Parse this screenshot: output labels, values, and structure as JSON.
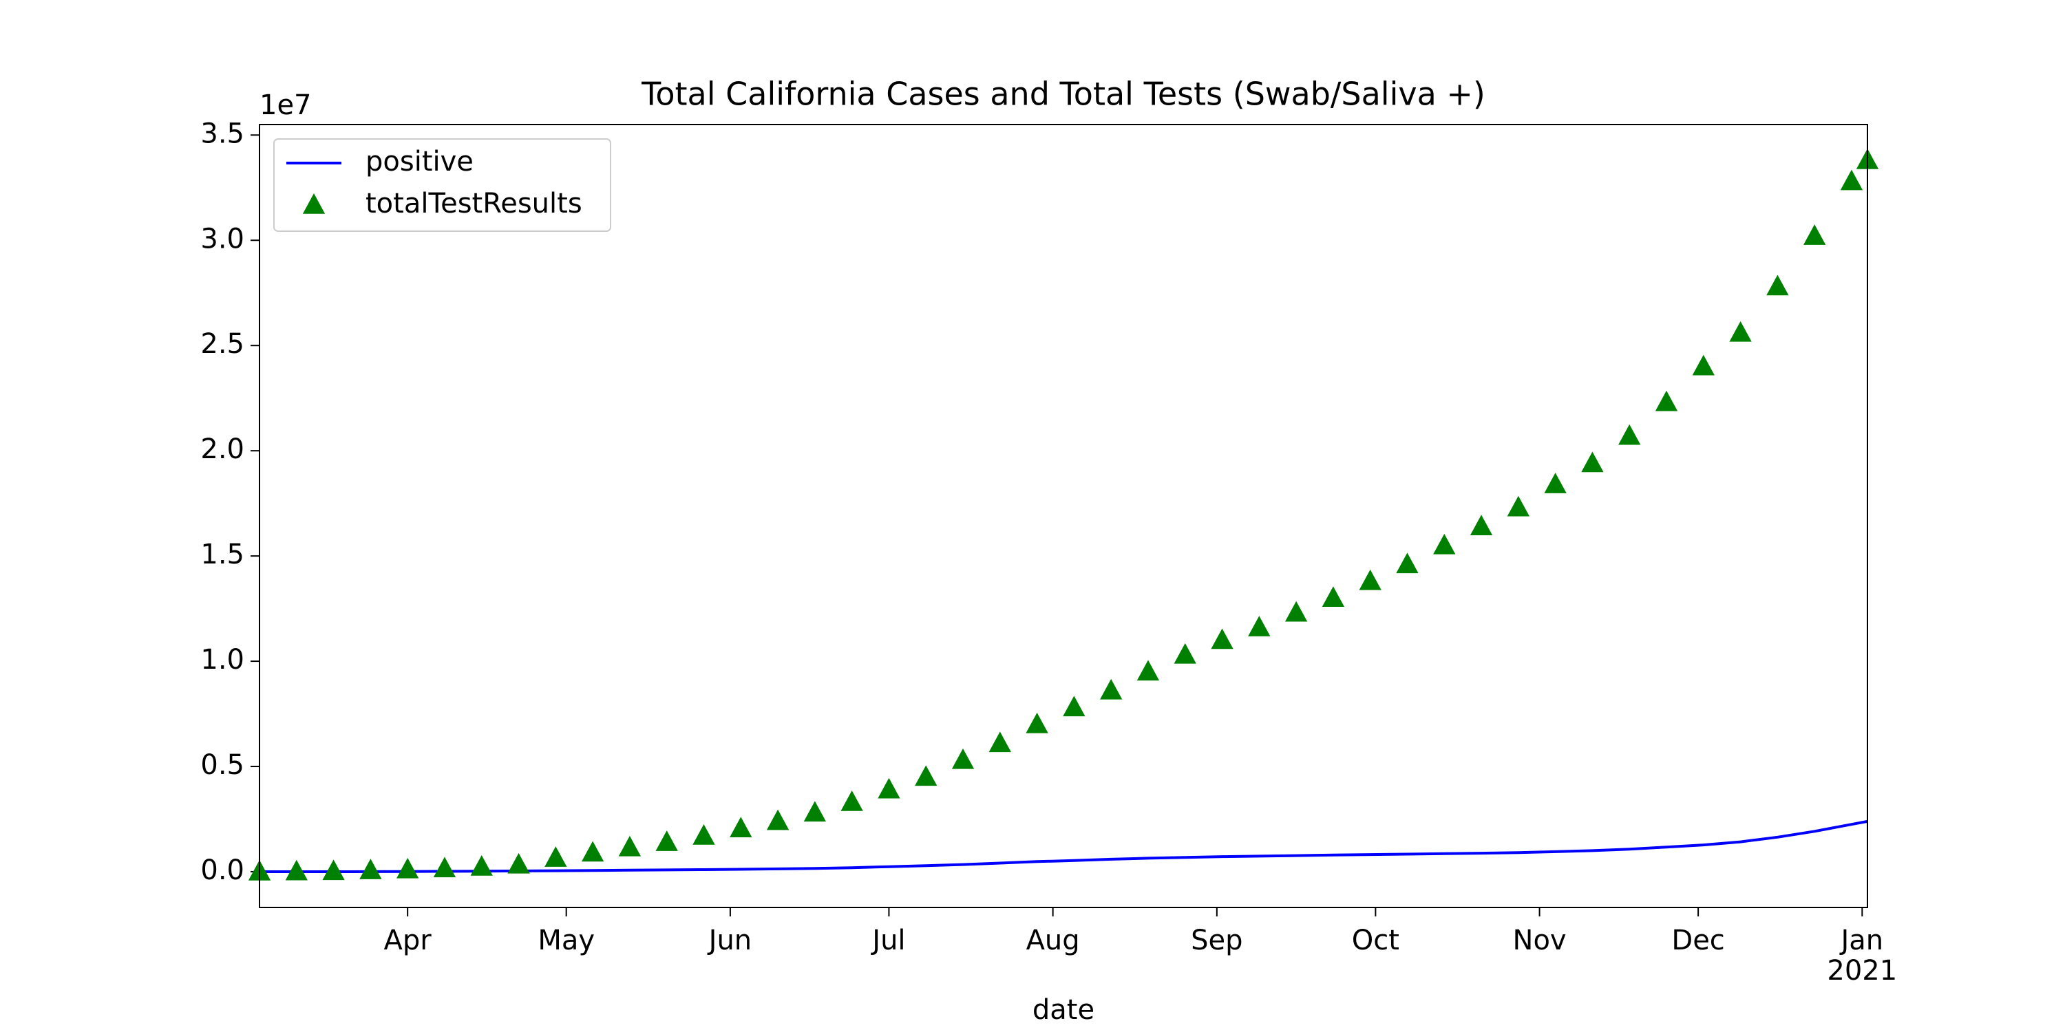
{
  "chart_data": {
    "type": "line",
    "title": "Total California Cases and Total Tests (Swab/Saliva +)",
    "xlabel": "date",
    "y_offset_label": "1e7",
    "x": [
      "2020-03-04",
      "2020-03-11",
      "2020-03-18",
      "2020-03-25",
      "2020-04-01",
      "2020-04-08",
      "2020-04-15",
      "2020-04-22",
      "2020-04-29",
      "2020-05-06",
      "2020-05-13",
      "2020-05-20",
      "2020-05-27",
      "2020-06-03",
      "2020-06-10",
      "2020-06-17",
      "2020-06-24",
      "2020-07-01",
      "2020-07-08",
      "2020-07-15",
      "2020-07-22",
      "2020-07-29",
      "2020-08-05",
      "2020-08-12",
      "2020-08-19",
      "2020-08-26",
      "2020-09-02",
      "2020-09-09",
      "2020-09-16",
      "2020-09-23",
      "2020-09-30",
      "2020-10-07",
      "2020-10-14",
      "2020-10-21",
      "2020-10-28",
      "2020-11-04",
      "2020-11-11",
      "2020-11-18",
      "2020-11-25",
      "2020-12-02",
      "2020-12-09",
      "2020-12-16",
      "2020-12-23",
      "2020-12-30",
      "2021-01-02"
    ],
    "series": [
      {
        "name": "positive",
        "color": "#0000ff",
        "marker": "line",
        "values": [
          50,
          200,
          700,
          2500,
          9200,
          17000,
          25000,
          36000,
          47000,
          58000,
          71000,
          84000,
          99000,
          115000,
          134000,
          158000,
          190000,
          238000,
          285000,
          340000,
          410000,
          480000,
          530000,
          590000,
          640000,
          680000,
          715000,
          740000,
          765000,
          790000,
          815000,
          835000,
          855000,
          880000,
          910000,
          950000,
          1000000,
          1070000,
          1170000,
          1270000,
          1420000,
          1640000,
          1920000,
          2250000,
          2390000
        ]
      },
      {
        "name": "totalTestResults",
        "color": "#008000",
        "marker": "triangle",
        "values": [
          0,
          10000,
          20000,
          60000,
          100000,
          150000,
          230000,
          330000,
          650000,
          900000,
          1150000,
          1400000,
          1700000,
          2050000,
          2400000,
          2800000,
          3300000,
          3900000,
          4500000,
          5300000,
          6100000,
          7000000,
          7800000,
          8600000,
          9500000,
          10300000,
          11000000,
          11600000,
          12300000,
          13000000,
          13800000,
          14600000,
          15500000,
          16400000,
          17300000,
          18400000,
          19400000,
          20700000,
          22300000,
          24000000,
          25600000,
          27800000,
          30200000,
          32800000,
          33800000
        ]
      }
    ],
    "xlim": [
      "2020-03-04",
      "2021-01-02"
    ],
    "xticks": [
      {
        "value": "2020-04-01",
        "label": "Apr"
      },
      {
        "value": "2020-05-01",
        "label": "May"
      },
      {
        "value": "2020-06-01",
        "label": "Jun"
      },
      {
        "value": "2020-07-01",
        "label": "Jul"
      },
      {
        "value": "2020-08-01",
        "label": "Aug"
      },
      {
        "value": "2020-09-01",
        "label": "Sep"
      },
      {
        "value": "2020-10-01",
        "label": "Oct"
      },
      {
        "value": "2020-11-01",
        "label": "Nov"
      },
      {
        "value": "2020-12-01",
        "label": "Dec"
      },
      {
        "value": "2021-01-01",
        "label": "Jan",
        "sublabel": "2021"
      }
    ],
    "ylim": [
      -1700000,
      35500000
    ],
    "yticks": [
      {
        "value": 0,
        "label": "0.0"
      },
      {
        "value": 5000000,
        "label": "0.5"
      },
      {
        "value": 10000000,
        "label": "1.0"
      },
      {
        "value": 15000000,
        "label": "1.5"
      },
      {
        "value": 20000000,
        "label": "2.0"
      },
      {
        "value": 25000000,
        "label": "2.5"
      },
      {
        "value": 30000000,
        "label": "3.0"
      },
      {
        "value": 35000000,
        "label": "3.5"
      }
    ],
    "legend": "upper left",
    "grid": false
  }
}
